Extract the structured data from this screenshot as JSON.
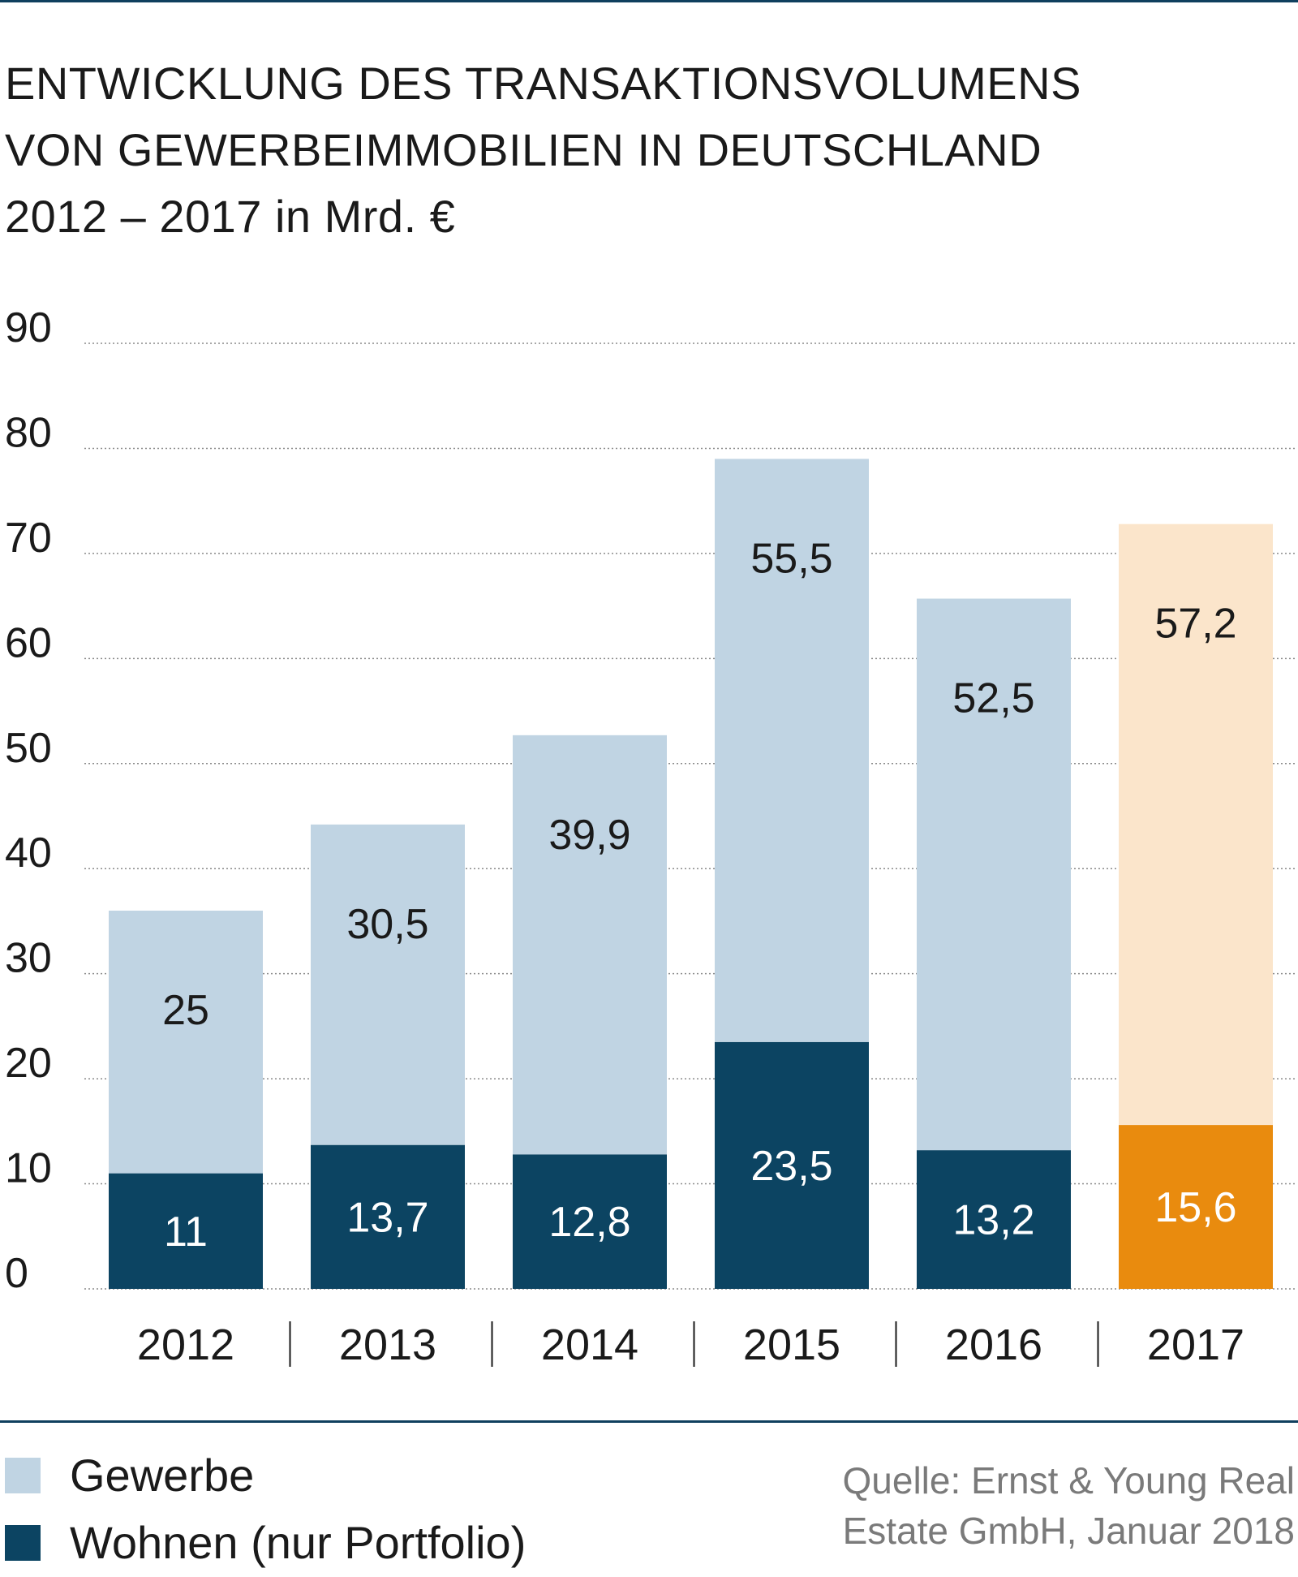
{
  "title_lines": [
    "ENTWICKLUNG DES TRANSAKTIONSVOLUMENS",
    "VON GEWERBEIMMOBILIEN IN DEUTSCHLAND",
    "2012 – 2017 in Mrd. €"
  ],
  "legend": [
    {
      "label": "Gewerbe",
      "color": "#c0d4e3"
    },
    {
      "label": "Wohnen (nur Portfolio)",
      "color": "#0c4462"
    }
  ],
  "source_lines": [
    "Quelle: Ernst & Young Real",
    "Estate GmbH, Januar 2018"
  ],
  "colors": {
    "gewerbe": "#c0d4e3",
    "wohnen": "#0c4462",
    "gewerbe_highlight": "#fbe5cb",
    "wohnen_highlight": "#e98b0e",
    "rule": "#0f3f5e"
  },
  "chart_data": {
    "type": "bar",
    "stacked": true,
    "categories": [
      "2012",
      "2013",
      "2014",
      "2015",
      "2016",
      "2017"
    ],
    "series": [
      {
        "name": "Wohnen (nur Portfolio)",
        "values": [
          11,
          13.7,
          12.8,
          23.5,
          13.2,
          15.6
        ],
        "labels": [
          "11",
          "13,7",
          "12,8",
          "23,5",
          "13,2",
          "15,6"
        ]
      },
      {
        "name": "Gewerbe",
        "values": [
          25,
          30.5,
          39.9,
          55.5,
          52.5,
          57.2
        ],
        "labels": [
          "25",
          "30,5",
          "39,9",
          "55,5",
          "52,5",
          "57,2"
        ]
      }
    ],
    "highlight_category": "2017",
    "ylim": [
      0,
      90
    ],
    "yticks": [
      0,
      10,
      20,
      30,
      40,
      50,
      60,
      70,
      80,
      90
    ],
    "grid": "dotted horizontal",
    "legend_position": "bottom-left"
  }
}
